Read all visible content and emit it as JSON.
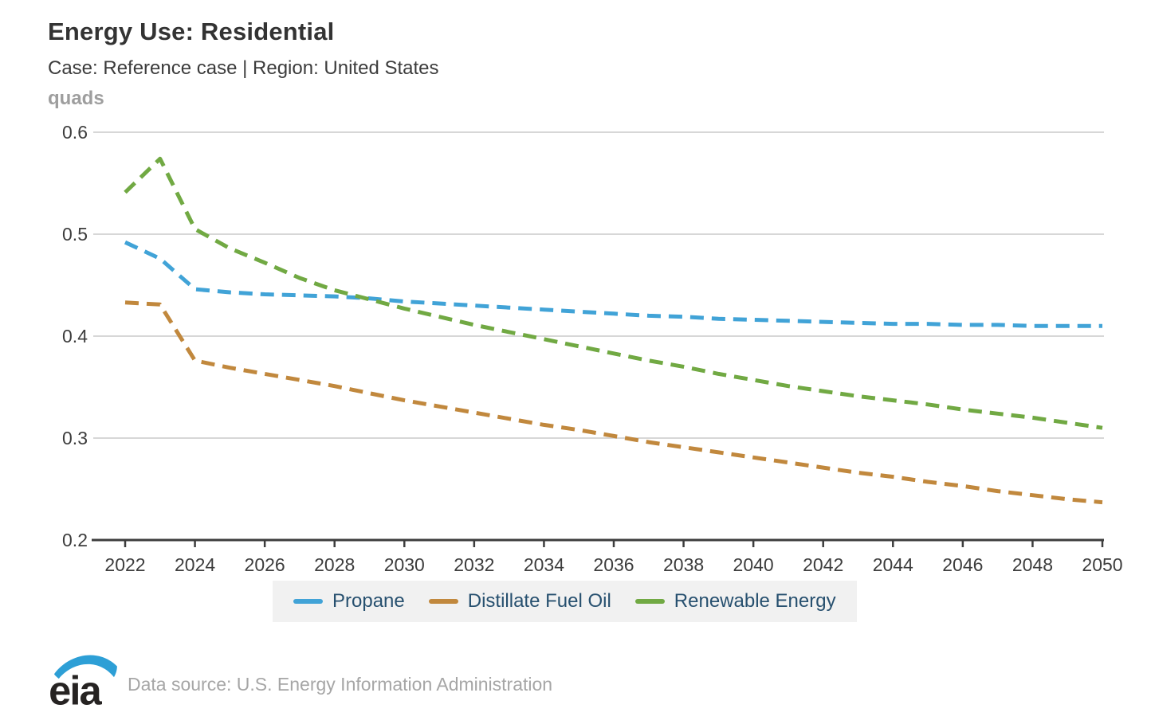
{
  "header": {
    "title": "Energy Use: Residential",
    "subtitle": "Case: Reference case | Region: United States",
    "units_label": "quads"
  },
  "chart_data": {
    "type": "line",
    "title": "Energy Use: Residential",
    "subtitle": "Case: Reference case | Region: United States",
    "ylabel": "quads",
    "ylim": [
      0.2,
      0.6
    ],
    "yticks": [
      0.2,
      0.3,
      0.4,
      0.5,
      0.6
    ],
    "xlim": [
      2022,
      2050
    ],
    "xticks": [
      2022,
      2024,
      2026,
      2028,
      2030,
      2032,
      2034,
      2036,
      2038,
      2040,
      2042,
      2044,
      2046,
      2048,
      2050
    ],
    "grid": "horizontal",
    "line_style": "dashed",
    "legend_position": "bottom",
    "x": [
      2022,
      2023,
      2024,
      2025,
      2026,
      2027,
      2028,
      2029,
      2030,
      2031,
      2032,
      2033,
      2034,
      2035,
      2036,
      2037,
      2038,
      2039,
      2040,
      2041,
      2042,
      2043,
      2044,
      2045,
      2046,
      2047,
      2048,
      2049,
      2050
    ],
    "series": [
      {
        "name": "Propane",
        "color": "#41a3d7",
        "values": [
          0.492,
          0.476,
          0.446,
          0.443,
          0.441,
          0.44,
          0.439,
          0.437,
          0.434,
          0.432,
          0.43,
          0.428,
          0.426,
          0.424,
          0.422,
          0.42,
          0.419,
          0.417,
          0.416,
          0.415,
          0.414,
          0.413,
          0.412,
          0.412,
          0.411,
          0.411,
          0.41,
          0.41,
          0.41
        ]
      },
      {
        "name": "Distillate Fuel Oil",
        "color": "#c1883d",
        "values": [
          0.433,
          0.431,
          0.376,
          0.369,
          0.363,
          0.357,
          0.351,
          0.344,
          0.337,
          0.331,
          0.325,
          0.319,
          0.313,
          0.308,
          0.302,
          0.296,
          0.291,
          0.286,
          0.281,
          0.276,
          0.271,
          0.266,
          0.262,
          0.257,
          0.253,
          0.248,
          0.244,
          0.24,
          0.237
        ]
      },
      {
        "name": "Renewable Energy",
        "color": "#71a943",
        "values": [
          0.541,
          0.574,
          0.505,
          0.486,
          0.472,
          0.457,
          0.445,
          0.436,
          0.427,
          0.419,
          0.411,
          0.404,
          0.397,
          0.39,
          0.383,
          0.376,
          0.37,
          0.363,
          0.357,
          0.351,
          0.346,
          0.341,
          0.337,
          0.333,
          0.328,
          0.324,
          0.32,
          0.315,
          0.31
        ]
      }
    ]
  },
  "footer": {
    "logo_text": "eia",
    "source": "Data source: U.S. Energy Information Administration"
  }
}
